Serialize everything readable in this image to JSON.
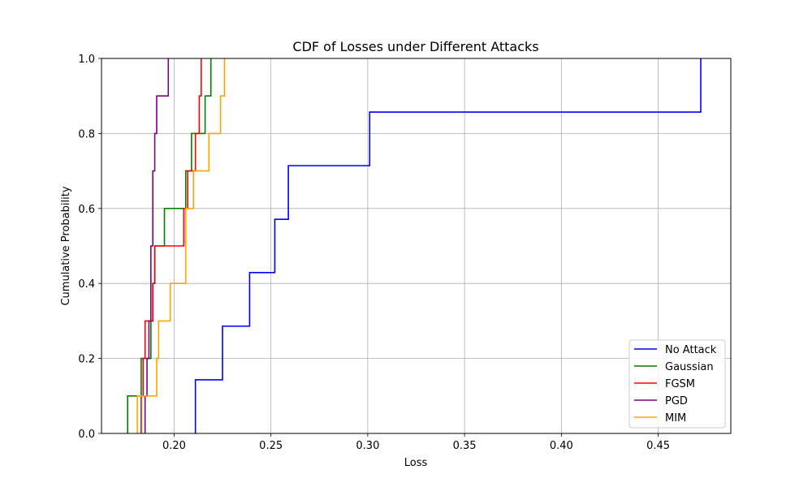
{
  "chart_data": {
    "type": "line",
    "step": "post",
    "title": "CDF of Losses under Different Attacks",
    "xlabel": "Loss",
    "ylabel": "Cumulative Probability",
    "xlim": [
      0.1625,
      0.4875
    ],
    "ylim": [
      0.0,
      1.0
    ],
    "x_ticks": [
      0.2,
      0.25,
      0.3,
      0.35,
      0.4,
      0.45
    ],
    "x_tick_labels": [
      "0.20",
      "0.25",
      "0.30",
      "0.35",
      "0.40",
      "0.45"
    ],
    "y_ticks": [
      0.0,
      0.2,
      0.4,
      0.6,
      0.8,
      1.0
    ],
    "y_tick_labels": [
      "0.0",
      "0.2",
      "0.4",
      "0.6",
      "0.8",
      "1.0"
    ],
    "grid": true,
    "legend_position": "lower-right",
    "series": [
      {
        "name": "No Attack",
        "color": "#0000ff",
        "x": [
          0.211,
          0.225,
          0.239,
          0.252,
          0.259,
          0.301,
          0.472
        ],
        "y": [
          0.143,
          0.286,
          0.429,
          0.571,
          0.714,
          0.857,
          1.0
        ]
      },
      {
        "name": "Gaussian",
        "color": "#008000",
        "x": [
          0.176,
          0.183,
          0.188,
          0.189,
          0.19,
          0.195,
          0.206,
          0.209,
          0.216,
          0.219
        ],
        "y": [
          0.1,
          0.2,
          0.3,
          0.4,
          0.5,
          0.6,
          0.7,
          0.8,
          0.9,
          1.0
        ]
      },
      {
        "name": "FGSM",
        "color": "#ff0000",
        "x": [
          0.183,
          0.184,
          0.185,
          0.189,
          0.19,
          0.205,
          0.207,
          0.211,
          0.213,
          0.214
        ],
        "y": [
          0.1,
          0.2,
          0.3,
          0.4,
          0.5,
          0.6,
          0.7,
          0.8,
          0.9,
          1.0
        ]
      },
      {
        "name": "PGD",
        "color": "#800080",
        "x": [
          0.185,
          0.186,
          0.187,
          0.188,
          0.188,
          0.189,
          0.189,
          0.19,
          0.191,
          0.197
        ],
        "y": [
          0.1,
          0.2,
          0.3,
          0.4,
          0.5,
          0.6,
          0.7,
          0.8,
          0.9,
          1.0
        ]
      },
      {
        "name": "MIM",
        "color": "#ffa500",
        "x": [
          0.181,
          0.191,
          0.192,
          0.198,
          0.206,
          0.206,
          0.21,
          0.218,
          0.224,
          0.226
        ],
        "y": [
          0.1,
          0.2,
          0.3,
          0.4,
          0.5,
          0.6,
          0.7,
          0.8,
          0.9,
          1.0
        ]
      }
    ]
  }
}
